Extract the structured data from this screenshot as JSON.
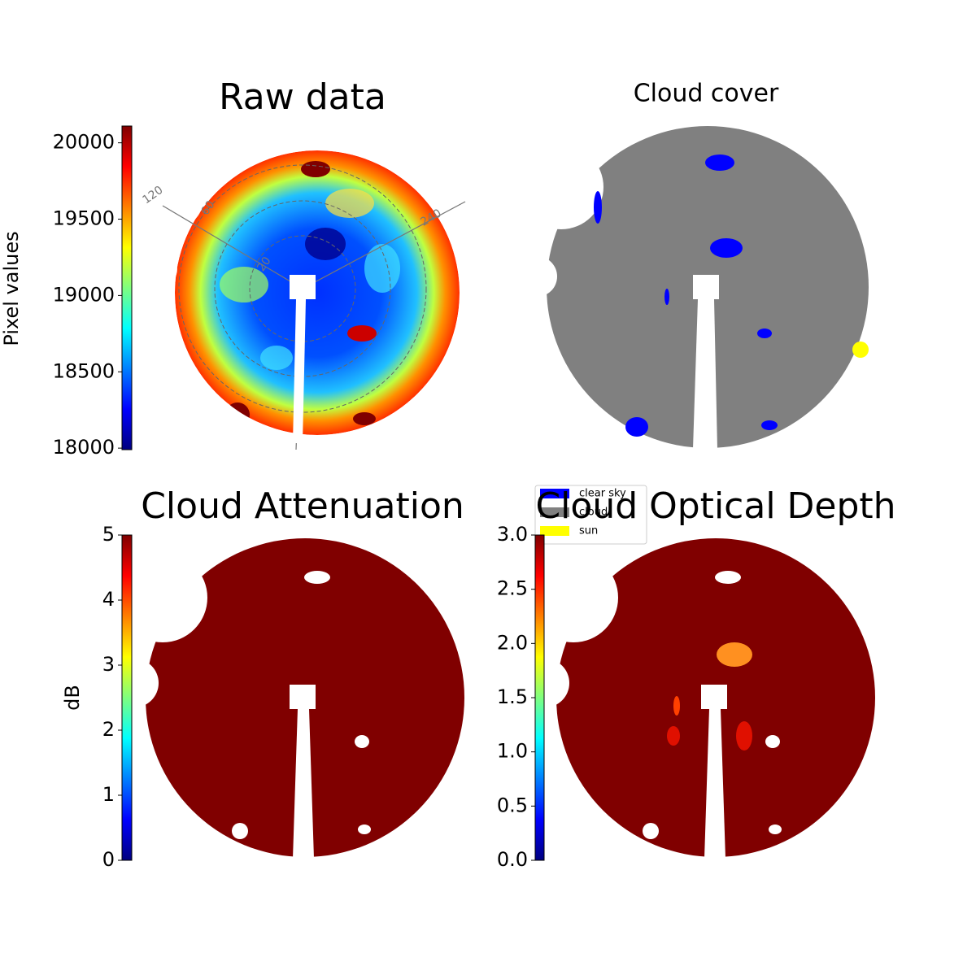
{
  "chart_data": [
    {
      "type": "image",
      "title": "Raw data",
      "colormap": "jet",
      "colorbar_label": "Pixel values",
      "clim": [
        17990,
        20110
      ],
      "cticks": [
        18000,
        18500,
        19000,
        19500,
        20000
      ],
      "annotations": [
        "120",
        "60",
        "20",
        "240"
      ]
    },
    {
      "type": "image",
      "title": "Cloud cover",
      "legend": [
        {
          "name": "clear sky",
          "color": "#0000ff"
        },
        {
          "name": "cloud",
          "color": "#808080"
        },
        {
          "name": "sun",
          "color": "#ffff00"
        }
      ]
    },
    {
      "type": "image",
      "title": "Cloud Attenuation",
      "colormap": "jet",
      "colorbar_label": "dB",
      "clim": [
        0,
        5
      ],
      "cticks": [
        0,
        1,
        2,
        3,
        4,
        5
      ]
    },
    {
      "type": "image",
      "title": "Cloud Optical Depth",
      "colormap": "jet",
      "clim": [
        0,
        3
      ],
      "cticks": [
        {
          "value": 0,
          "label": "0.0"
        },
        {
          "value": 0.5,
          "label": "0.5"
        },
        {
          "value": 1,
          "label": "1.0"
        },
        {
          "value": 1.5,
          "label": "1.5"
        },
        {
          "value": 2,
          "label": "2.0"
        },
        {
          "value": 2.5,
          "label": "2.5"
        },
        {
          "value": 3,
          "label": "3.0"
        }
      ]
    }
  ]
}
